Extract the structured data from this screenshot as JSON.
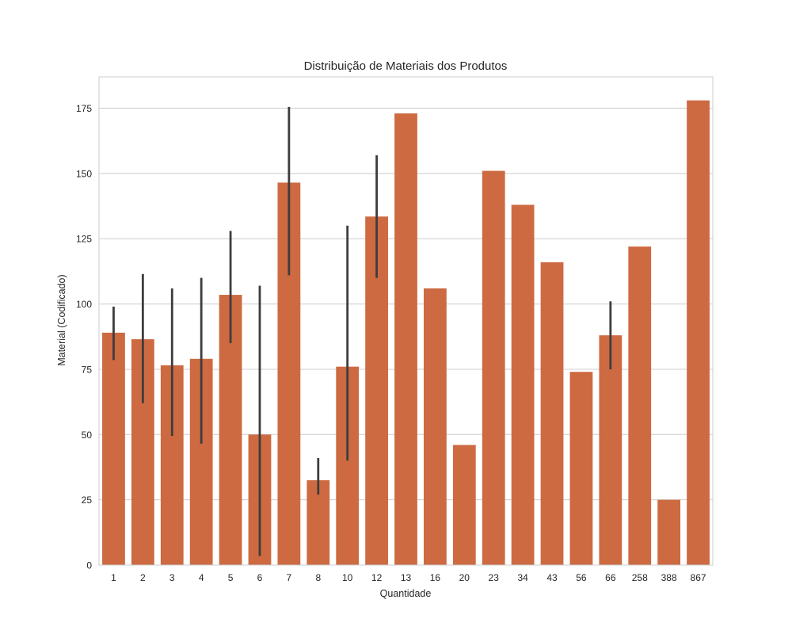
{
  "chart_data": {
    "type": "bar",
    "title": "Distribuição de Materiais dos Produtos",
    "xlabel": "Quantidade",
    "ylabel": "Material (Codificado)",
    "categories": [
      "1",
      "2",
      "3",
      "4",
      "5",
      "6",
      "7",
      "8",
      "10",
      "12",
      "13",
      "16",
      "20",
      "23",
      "34",
      "43",
      "56",
      "66",
      "258",
      "388",
      "867"
    ],
    "values": [
      89,
      86.5,
      76.5,
      79,
      103.5,
      50,
      146.5,
      32.5,
      76,
      133.5,
      173,
      106,
      46,
      151,
      138,
      116,
      74,
      88,
      122,
      25,
      178
    ],
    "error_bars": [
      [
        78.5,
        99
      ],
      [
        62,
        111.5
      ],
      [
        49.5,
        106
      ],
      [
        46.5,
        110
      ],
      [
        85,
        128
      ],
      [
        3.5,
        107
      ],
      [
        111,
        175.5
      ],
      [
        27,
        41
      ],
      [
        40,
        130
      ],
      [
        110,
        157
      ],
      null,
      null,
      null,
      null,
      null,
      null,
      null,
      [
        75,
        101
      ],
      null,
      null,
      null
    ],
    "ylim": [
      0,
      187
    ],
    "yticks": [
      0,
      25,
      50,
      75,
      100,
      125,
      150,
      175
    ],
    "grid": true,
    "bar_color": "#cd6a42",
    "error_color": "#3d3d3d"
  }
}
